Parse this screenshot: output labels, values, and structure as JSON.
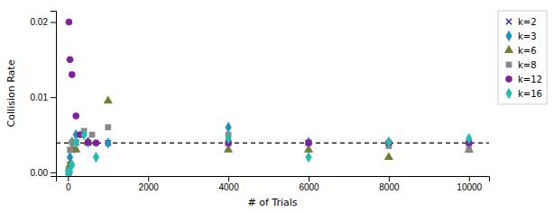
{
  "chart_data": {
    "type": "scatter",
    "xlabel": "# of Trials",
    "ylabel": "Collision Rate",
    "xlim": [
      -300,
      10500
    ],
    "ylim": [
      -0.0005,
      0.0215
    ],
    "xticks": [
      0,
      2000,
      4000,
      6000,
      8000,
      10000
    ],
    "yticks": [
      {
        "value": 0,
        "label": "0.00"
      },
      0.01,
      0.02
    ],
    "grid": false,
    "legend": "right",
    "reference_lines": [
      {
        "y": 0.00390625,
        "color": "#000000",
        "line_style": "dashed"
      }
    ],
    "series": [
      {
        "name": "k=2",
        "color": "#3030a0",
        "marker": "x",
        "x": [
          10,
          25,
          50,
          100,
          200,
          500,
          1000,
          4000,
          6000,
          8000,
          10000
        ],
        "values": [
          0.0,
          0.0,
          0.001,
          0.003,
          0.00390625,
          0.00390625,
          0.00390625,
          0.00390625,
          0.00390625,
          0.00390625,
          0.00390625
        ]
      },
      {
        "name": "k=3",
        "color": "#2090c0",
        "marker": "diamond",
        "x": [
          10,
          25,
          50,
          100,
          200,
          500,
          1000,
          4000,
          6000,
          8000,
          10000
        ],
        "values": [
          0.0,
          0.0005,
          0.002,
          0.004,
          0.005,
          0.004,
          0.00390625,
          0.006,
          0.004,
          0.004,
          0.004
        ]
      },
      {
        "name": "k=6",
        "color": "#708030",
        "marker": "triangle",
        "x": [
          50,
          100,
          200,
          500,
          1000,
          4000,
          6000,
          8000,
          10000
        ],
        "values": [
          0.001,
          0.003,
          0.003,
          0.004,
          0.0095,
          0.003,
          0.003,
          0.002,
          0.003
        ]
      },
      {
        "name": "k=8",
        "color": "#888888",
        "marker": "square",
        "x": [
          50,
          100,
          200,
          400,
          600,
          1000,
          4000,
          6000,
          8000,
          10000
        ],
        "values": [
          0.003,
          0.004,
          0.004,
          0.0055,
          0.005,
          0.006,
          0.005,
          0.004,
          0.0035,
          0.003
        ]
      },
      {
        "name": "k=12",
        "color": "#8020a0",
        "marker": "circle",
        "x": [
          25,
          50,
          100,
          200,
          300,
          500,
          700,
          4000,
          6000,
          8000,
          10000
        ],
        "values": [
          0.02,
          0.015,
          0.013,
          0.0075,
          0.005,
          0.004,
          0.00390625,
          0.00390625,
          0.00390625,
          0.00390625,
          0.00390625
        ]
      },
      {
        "name": "k=16",
        "color": "#20c0b0",
        "marker": "diamond",
        "x": [
          10,
          25,
          50,
          100,
          200,
          400,
          700,
          4000,
          6000,
          8000,
          10000
        ],
        "values": [
          0.0,
          0.0,
          0.0,
          0.001,
          0.004,
          0.005,
          0.002,
          0.0045,
          0.002,
          0.004,
          0.0045
        ]
      }
    ]
  }
}
